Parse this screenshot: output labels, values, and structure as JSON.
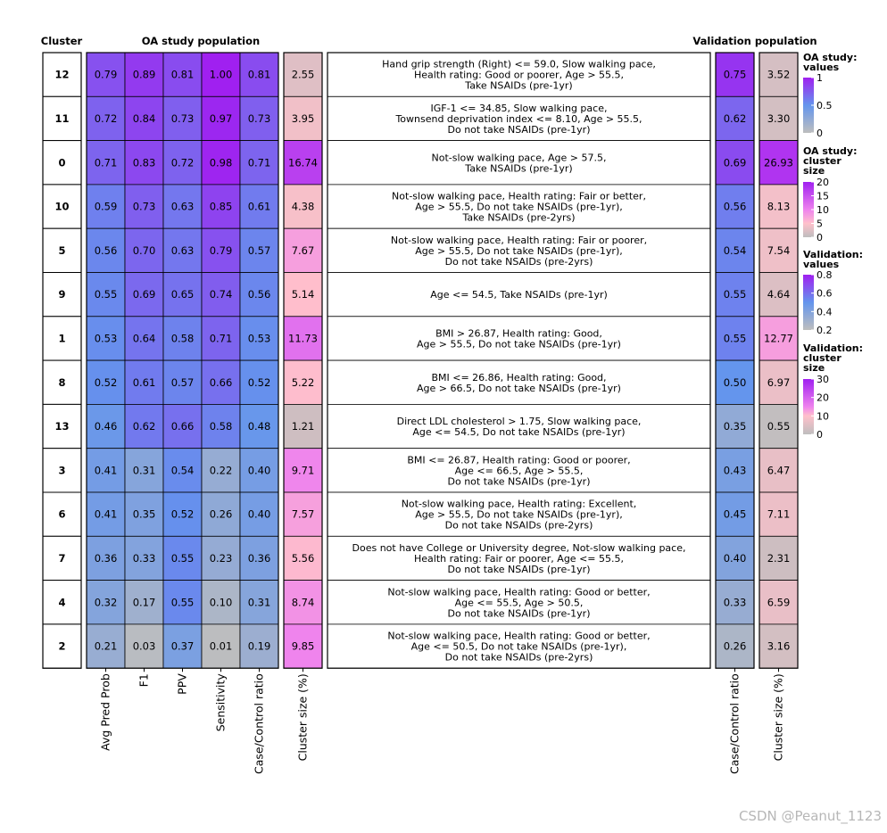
{
  "chart_data": {
    "type": "heatmap",
    "headers": {
      "cluster": "Cluster",
      "oa_population": "OA study population",
      "validation_population": "Validation population"
    },
    "oa_columns": [
      "Avg Pred Prob",
      "F1",
      "PPV",
      "Sensitivity",
      "Case/Control ratio"
    ],
    "oa_size_column": "Cluster size (%)",
    "validation_columns": [
      "Case/Control ratio",
      "Cluster size (%)"
    ],
    "rows": [
      {
        "cluster": "12",
        "oa_values": [
          0.79,
          0.89,
          0.81,
          1.0,
          0.81
        ],
        "oa_size": 2.55,
        "description": [
          "Hand grip strength (Right) <= 59.0, Slow walking pace,",
          "Health rating: Good or poorer, Age > 55.5,",
          "Take NSAIDs (pre-1yr)"
        ],
        "val_ratio": 0.75,
        "val_size": 3.52
      },
      {
        "cluster": "11",
        "oa_values": [
          0.72,
          0.84,
          0.73,
          0.97,
          0.73
        ],
        "oa_size": 3.95,
        "description": [
          "IGF-1 <= 34.85, Slow walking pace,",
          "Townsend deprivation index <= 8.10, Age > 55.5,",
          "Do not take NSAIDs (pre-1yr)"
        ],
        "val_ratio": 0.62,
        "val_size": 3.3
      },
      {
        "cluster": "0",
        "oa_values": [
          0.71,
          0.83,
          0.72,
          0.98,
          0.71
        ],
        "oa_size": 16.74,
        "description": [
          "Not-slow walking pace, Age > 57.5,",
          "Take NSAIDs (pre-1yr)"
        ],
        "val_ratio": 0.69,
        "val_size": 26.93
      },
      {
        "cluster": "10",
        "oa_values": [
          0.59,
          0.73,
          0.63,
          0.85,
          0.61
        ],
        "oa_size": 4.38,
        "description": [
          "Not-slow walking pace, Health rating: Fair or better,",
          "Age > 55.5, Do not take NSAIDs (pre-1yr),",
          "Take NSAIDs  (pre-2yrs)"
        ],
        "val_ratio": 0.56,
        "val_size": 8.13
      },
      {
        "cluster": "5",
        "oa_values": [
          0.56,
          0.7,
          0.63,
          0.79,
          0.57
        ],
        "oa_size": 7.67,
        "description": [
          "Not-slow walking pace, Health rating: Fair or poorer,",
          "Age > 55.5, Do not take NSAIDs (pre-1yr),",
          "Do not take NSAIDs  (pre-2yrs)"
        ],
        "val_ratio": 0.54,
        "val_size": 7.54
      },
      {
        "cluster": "9",
        "oa_values": [
          0.55,
          0.69,
          0.65,
          0.74,
          0.56
        ],
        "oa_size": 5.14,
        "description": [
          "Age <= 54.5, Take NSAIDs (pre-1yr)"
        ],
        "val_ratio": 0.55,
        "val_size": 4.64
      },
      {
        "cluster": "1",
        "oa_values": [
          0.53,
          0.64,
          0.58,
          0.71,
          0.53
        ],
        "oa_size": 11.73,
        "description": [
          "BMI > 26.87, Health rating: Good,",
          "Age > 55.5, Do not take NSAIDs (pre-1yr)"
        ],
        "val_ratio": 0.55,
        "val_size": 12.77
      },
      {
        "cluster": "8",
        "oa_values": [
          0.52,
          0.61,
          0.57,
          0.66,
          0.52
        ],
        "oa_size": 5.22,
        "description": [
          "BMI <= 26.86, Health rating: Good,",
          "Age > 66.5, Do not take NSAIDs (pre-1yr)"
        ],
        "val_ratio": 0.5,
        "val_size": 6.97
      },
      {
        "cluster": "13",
        "oa_values": [
          0.46,
          0.62,
          0.66,
          0.58,
          0.48
        ],
        "oa_size": 1.21,
        "description": [
          "Direct LDL cholesterol > 1.75, Slow walking pace,",
          "Age <= 54.5, Do not take NSAIDs (pre-1yr)"
        ],
        "val_ratio": 0.35,
        "val_size": 0.55
      },
      {
        "cluster": "3",
        "oa_values": [
          0.41,
          0.31,
          0.54,
          0.22,
          0.4
        ],
        "oa_size": 9.71,
        "description": [
          "BMI <= 26.87, Health rating: Good or poorer,",
          "Age <= 66.5, Age > 55.5,",
          "Do not take NSAIDs (pre-1yr)"
        ],
        "val_ratio": 0.43,
        "val_size": 6.47
      },
      {
        "cluster": "6",
        "oa_values": [
          0.41,
          0.35,
          0.52,
          0.26,
          0.4
        ],
        "oa_size": 7.57,
        "description": [
          "Not-slow walking pace, Health rating: Excellent,",
          "Age > 55.5, Do not take NSAIDs (pre-1yr),",
          "Do not take NSAIDs  (pre-2yrs)"
        ],
        "val_ratio": 0.45,
        "val_size": 7.11
      },
      {
        "cluster": "7",
        "oa_values": [
          0.36,
          0.33,
          0.55,
          0.23,
          0.36
        ],
        "oa_size": 5.56,
        "description": [
          "Does not have College or University degree, Not-slow walking pace,",
          "Health rating: Fair or poorer, Age <= 55.5,",
          "Do not take NSAIDs (pre-1yr)"
        ],
        "val_ratio": 0.4,
        "val_size": 2.31
      },
      {
        "cluster": "4",
        "oa_values": [
          0.32,
          0.17,
          0.55,
          0.1,
          0.31
        ],
        "oa_size": 8.74,
        "description": [
          "Not-slow walking pace, Health rating: Good or better,",
          "Age <= 55.5, Age > 50.5,",
          "Do not take NSAIDs (pre-1yr)"
        ],
        "val_ratio": 0.33,
        "val_size": 6.59
      },
      {
        "cluster": "2",
        "oa_values": [
          0.21,
          0.03,
          0.37,
          0.01,
          0.19
        ],
        "oa_size": 9.85,
        "description": [
          "Not-slow walking pace, Health rating: Good or better,",
          "Age <= 50.5, Do not take NSAIDs (pre-1yr),",
          "Do not take NSAIDs  (pre-2yrs)"
        ],
        "val_ratio": 0.26,
        "val_size": 3.16
      }
    ],
    "legends": [
      {
        "title": [
          "OA study:",
          "values"
        ],
        "ticks": [
          0,
          0.5,
          1
        ],
        "labels": [
          "0",
          "0.5",
          "1"
        ],
        "scale": "values",
        "min": 0,
        "max": 1
      },
      {
        "title": [
          "OA study:",
          "cluster",
          "size"
        ],
        "ticks": [
          0,
          5,
          10,
          15,
          20
        ],
        "labels": [
          "0",
          "5",
          "10",
          "15",
          "20"
        ],
        "scale": "size",
        "min": 0,
        "max": 20
      },
      {
        "title": [
          "Validation:",
          "values"
        ],
        "ticks": [
          0.2,
          0.4,
          0.6,
          0.8
        ],
        "labels": [
          "0.2",
          "0.4",
          "0.6",
          "0.8"
        ],
        "scale": "values",
        "min": 0.2,
        "max": 0.8
      },
      {
        "title": [
          "Validation:",
          "cluster",
          "size"
        ],
        "ticks": [
          0,
          10,
          20,
          30
        ],
        "labels": [
          "0",
          "10",
          "20",
          "30"
        ],
        "scale": "size",
        "min": 0,
        "max": 30
      }
    ],
    "color_scales": {
      "values_oa": {
        "domain": [
          0,
          0.5,
          1
        ],
        "colors": [
          "#bebebe",
          "#6495ed",
          "#a020f0"
        ]
      },
      "size_oa": {
        "domain": [
          0,
          5,
          10,
          20
        ],
        "colors": [
          "#bebebe",
          "#ffc0cb",
          "#ee82ee",
          "#a020f0"
        ]
      },
      "values_validation": {
        "domain": [
          0.2,
          0.5,
          0.8
        ],
        "colors": [
          "#bebebe",
          "#6495ed",
          "#a020f0"
        ]
      },
      "size_validation": {
        "domain": [
          0,
          10,
          15,
          30
        ],
        "colors": [
          "#bebebe",
          "#ffc0cb",
          "#ee82ee",
          "#a020f0"
        ]
      }
    }
  },
  "watermark": "CSDN @Peanut_1123"
}
